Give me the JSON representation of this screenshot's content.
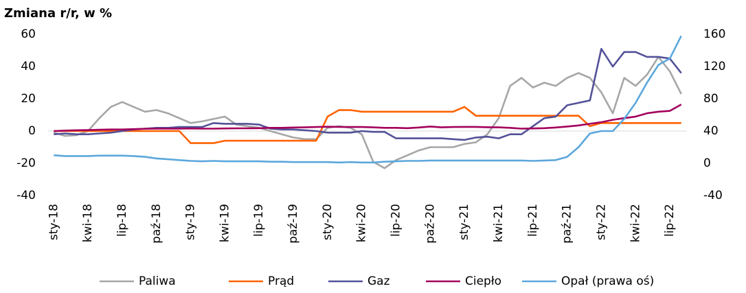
{
  "chart_data": {
    "type": "line",
    "title": "Zmiana r/r, w %",
    "categories": [
      "sty-18",
      null,
      null,
      "kwi-18",
      null,
      null,
      "lip-18",
      null,
      null,
      "paź-18",
      null,
      null,
      "sty-19",
      null,
      null,
      "kwi-19",
      null,
      null,
      "lip-19",
      null,
      null,
      "paź-19",
      null,
      null,
      "sty-20",
      null,
      null,
      "kwi-20",
      null,
      null,
      "lip-20",
      null,
      null,
      "paź-20",
      null,
      null,
      "sty-21",
      null,
      null,
      "kwi-21",
      null,
      null,
      "lip-21",
      null,
      null,
      "paź-21",
      null,
      null,
      "sty-22",
      null,
      null,
      "kwi-22",
      null,
      null,
      "lip-22",
      null
    ],
    "series": [
      {
        "name": "Paliwa",
        "color": "#a6a6a6",
        "values": [
          -1,
          -3,
          -2.5,
          0,
          8,
          15,
          18,
          15,
          12,
          13,
          11,
          8,
          5,
          6,
          7.5,
          9,
          4,
          3,
          2,
          0,
          -2,
          -4,
          -5,
          -5,
          2,
          3,
          2,
          -2,
          -19,
          -23,
          -18,
          -15,
          -12,
          -10,
          -10,
          -10,
          -8,
          -7,
          -2,
          8,
          28,
          33,
          27,
          30,
          28,
          33,
          36,
          33,
          24,
          11,
          33,
          28,
          35,
          46,
          37,
          23
        ]
      },
      {
        "name": "Prąd",
        "color": "#ff6200",
        "values": [
          0,
          0,
          0,
          0,
          0,
          0,
          0,
          0,
          0,
          0,
          0,
          0,
          -7.5,
          -7.5,
          -7.5,
          -6,
          -6,
          -6,
          -6,
          -6,
          -6,
          -6,
          -6,
          -6,
          9,
          13,
          13,
          12,
          12,
          12,
          12,
          12,
          12,
          12,
          12,
          12,
          15,
          9.5,
          9.5,
          9.5,
          9.5,
          9.5,
          9.5,
          9.5,
          9.5,
          9.5,
          9.5,
          3,
          5,
          5,
          5,
          5,
          5,
          5,
          5,
          5
        ]
      },
      {
        "name": "Gaz",
        "color": "#525199",
        "values": [
          -2,
          -1.5,
          -2,
          -2,
          -1.5,
          -1,
          0,
          1,
          1.5,
          2,
          2,
          2.5,
          2.5,
          2.5,
          5,
          4.5,
          4.5,
          4.5,
          4,
          1.5,
          1,
          1,
          0.5,
          0,
          -1,
          -1,
          -1,
          0,
          -0.5,
          -0.5,
          -4.5,
          -4.5,
          -4.5,
          -4.5,
          -4.5,
          -5,
          -5.5,
          -4,
          -3.5,
          -4.5,
          -2,
          -2,
          3,
          8,
          9,
          16,
          17.5,
          19,
          51,
          40,
          49,
          49,
          46,
          46,
          45,
          36
        ]
      },
      {
        "name": "Ciepło",
        "color": "#a3005c",
        "values": [
          0,
          0.3,
          0.5,
          0.6,
          0.8,
          1,
          1,
          1.2,
          1.4,
          1.5,
          1.5,
          1.5,
          1.6,
          1.5,
          1.5,
          1.6,
          1.7,
          1.7,
          1.8,
          2,
          2,
          2.2,
          2.3,
          2.5,
          2.7,
          2.6,
          2.5,
          2.5,
          2.3,
          2,
          2,
          1.8,
          2.2,
          2.8,
          2.3,
          2.5,
          2.6,
          2.6,
          2.4,
          2.3,
          2,
          1.5,
          1.6,
          1.8,
          2.2,
          2.8,
          3.5,
          4.5,
          5.5,
          7,
          8,
          9,
          11,
          12,
          12.5,
          16.5
        ]
      },
      {
        "name": "Opał (prawa oś)",
        "color": "#5ba7dc",
        "axis": "y2",
        "values": [
          10,
          9,
          9,
          9,
          9.5,
          9.5,
          9.5,
          9,
          8,
          6,
          5,
          4,
          3,
          2.5,
          3,
          2.5,
          2.5,
          2.5,
          2.5,
          2,
          2,
          1.5,
          1.5,
          1.5,
          1.5,
          1,
          1.5,
          1,
          1,
          2,
          2.5,
          3,
          3,
          3.5,
          3.5,
          3.5,
          3.5,
          3.5,
          3.5,
          3.5,
          3.5,
          3.5,
          3,
          3.5,
          4,
          8,
          20,
          37,
          40,
          40,
          55,
          75,
          100,
          122,
          130,
          158
        ]
      }
    ],
    "ylim": [
      -40,
      60
    ],
    "yticks": [
      -40,
      -20,
      0,
      20,
      40,
      60
    ],
    "y2lim": [
      -40,
      160
    ],
    "y2ticks": [
      -40,
      0,
      40,
      80,
      120,
      160
    ],
    "legend": "bottom"
  }
}
